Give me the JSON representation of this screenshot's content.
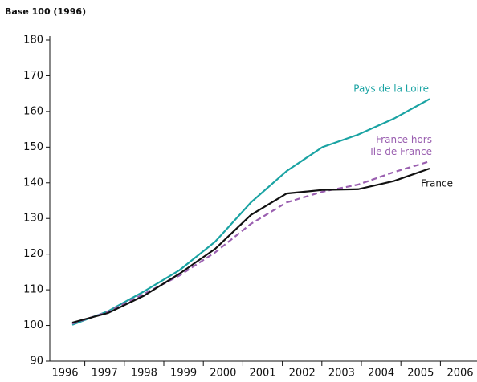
{
  "chart_data": {
    "type": "line",
    "title": "Base 100 (1996)",
    "categories": [
      "1996",
      "1997",
      "1998",
      "1999",
      "2000",
      "2001",
      "2002",
      "2003",
      "2004",
      "2005",
      "2006"
    ],
    "ylim": [
      90,
      180
    ],
    "yticks": [
      90,
      100,
      110,
      120,
      130,
      140,
      150,
      160,
      170,
      180
    ],
    "series": [
      {
        "name": "Pays de la Loire",
        "color": "#1aa3a3",
        "dash": false,
        "values": [
          100.2,
          104,
          109.5,
          115.5,
          123.5,
          134.5,
          143.3,
          150,
          153.5,
          158,
          163.5
        ]
      },
      {
        "name": "France hors\nIle de France",
        "color": "#9a5fb0",
        "dash": true,
        "values": [
          100.5,
          103.8,
          108.8,
          114,
          120.5,
          128.5,
          134.5,
          137.5,
          139.5,
          143,
          146
        ]
      },
      {
        "name": "France",
        "color": "#111111",
        "dash": false,
        "values": [
          100.8,
          103.5,
          108.3,
          114.5,
          121.5,
          131,
          137,
          138,
          138.2,
          140.5,
          144
        ]
      }
    ]
  }
}
